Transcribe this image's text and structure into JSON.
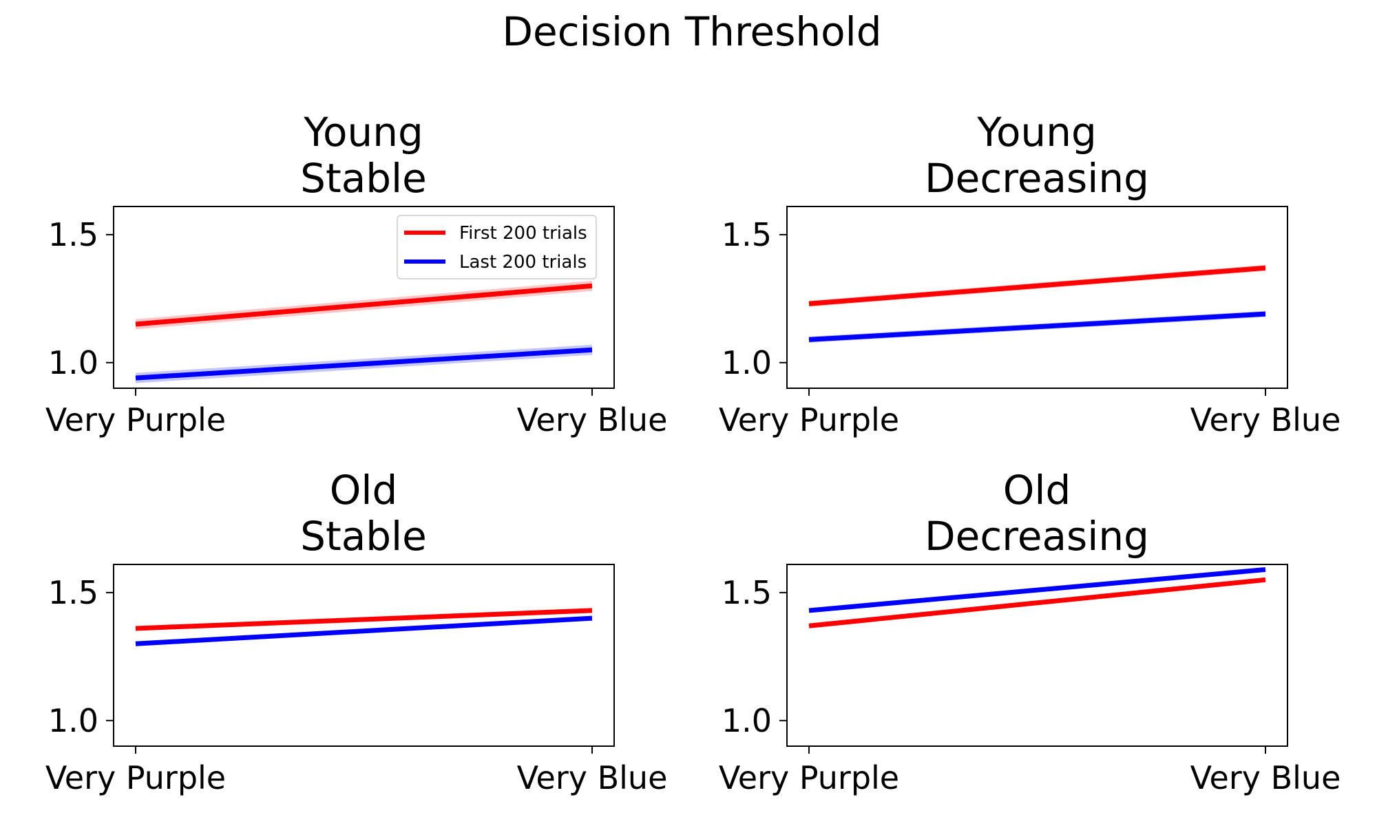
{
  "figure": {
    "title": "Decision Threshold"
  },
  "legend": {
    "entries": [
      {
        "label": "First 200 trials",
        "color": "#ff0000"
      },
      {
        "label": "Last 200 trials",
        "color": "#0000ff"
      }
    ],
    "placement": "upper-right of first subplot"
  },
  "colors": {
    "first": "#ff0000",
    "last": "#0000ff"
  },
  "chart_data": [
    {
      "type": "line",
      "title_lines": [
        "Young",
        "Stable"
      ],
      "categories": [
        "Very Purple",
        "Very Blue"
      ],
      "yticks": [
        "1.0",
        "1.5"
      ],
      "ylim": [
        0.9,
        1.61
      ],
      "grid": false,
      "series": [
        {
          "name": "First 200 trials",
          "color": "#ff0000",
          "values": [
            1.15,
            1.3
          ],
          "band": 0.02
        },
        {
          "name": "Last 200 trials",
          "color": "#0000ff",
          "values": [
            0.94,
            1.05
          ],
          "band": 0.02
        }
      ]
    },
    {
      "type": "line",
      "title_lines": [
        "Young",
        "Decreasing"
      ],
      "categories": [
        "Very Purple",
        "Very Blue"
      ],
      "yticks": [
        "1.0",
        "1.5"
      ],
      "ylim": [
        0.9,
        1.61
      ],
      "grid": false,
      "series": [
        {
          "name": "First 200 trials",
          "color": "#ff0000",
          "values": [
            1.23,
            1.37
          ],
          "band": 0.012
        },
        {
          "name": "Last 200 trials",
          "color": "#0000ff",
          "values": [
            1.09,
            1.19
          ],
          "band": 0.012
        }
      ]
    },
    {
      "type": "line",
      "title_lines": [
        "Old",
        "Stable"
      ],
      "categories": [
        "Very Purple",
        "Very Blue"
      ],
      "yticks": [
        "1.0",
        "1.5"
      ],
      "ylim": [
        0.9,
        1.61
      ],
      "grid": false,
      "series": [
        {
          "name": "First 200 trials",
          "color": "#ff0000",
          "values": [
            1.36,
            1.43
          ],
          "band": 0
        },
        {
          "name": "Last 200 trials",
          "color": "#0000ff",
          "values": [
            1.3,
            1.4
          ],
          "band": 0
        }
      ]
    },
    {
      "type": "line",
      "title_lines": [
        "Old",
        "Decreasing"
      ],
      "categories": [
        "Very Purple",
        "Very Blue"
      ],
      "yticks": [
        "1.0",
        "1.5"
      ],
      "ylim": [
        0.9,
        1.61
      ],
      "grid": false,
      "series": [
        {
          "name": "First 200 trials",
          "color": "#ff0000",
          "values": [
            1.37,
            1.55
          ],
          "band": 0
        },
        {
          "name": "Last 200 trials",
          "color": "#0000ff",
          "values": [
            1.43,
            1.59
          ],
          "band": 0
        }
      ]
    }
  ]
}
